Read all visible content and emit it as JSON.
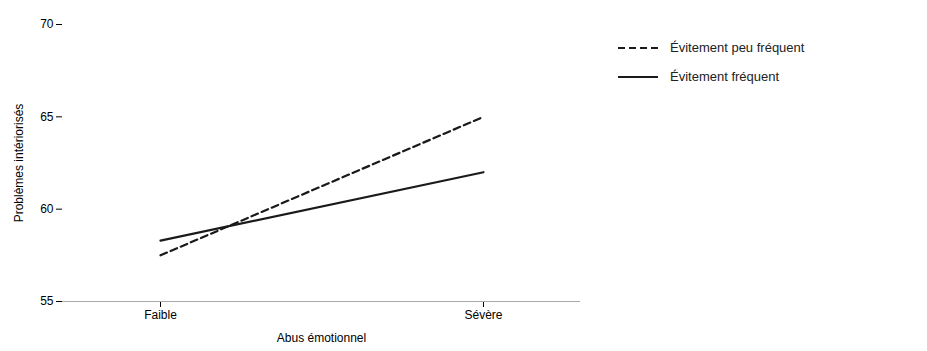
{
  "chart_data": {
    "type": "line",
    "categories": [
      "Faible",
      "Sévère"
    ],
    "series": [
      {
        "name": "Évitement peu fréquent",
        "color": "#1a1a1a",
        "line_style": "dashed",
        "values": [
          57.5,
          65.0
        ]
      },
      {
        "name": "Évitement fréquent",
        "color": "#1a1a1a",
        "line_style": "solid",
        "values": [
          58.3,
          62.0
        ]
      }
    ],
    "xlabel": "Abus émotionnel",
    "ylabel": "Problèmes intériorisés",
    "ylim": [
      55,
      70
    ],
    "yticks": [
      55,
      60,
      65,
      70
    ],
    "grid": false,
    "legend": "right"
  }
}
